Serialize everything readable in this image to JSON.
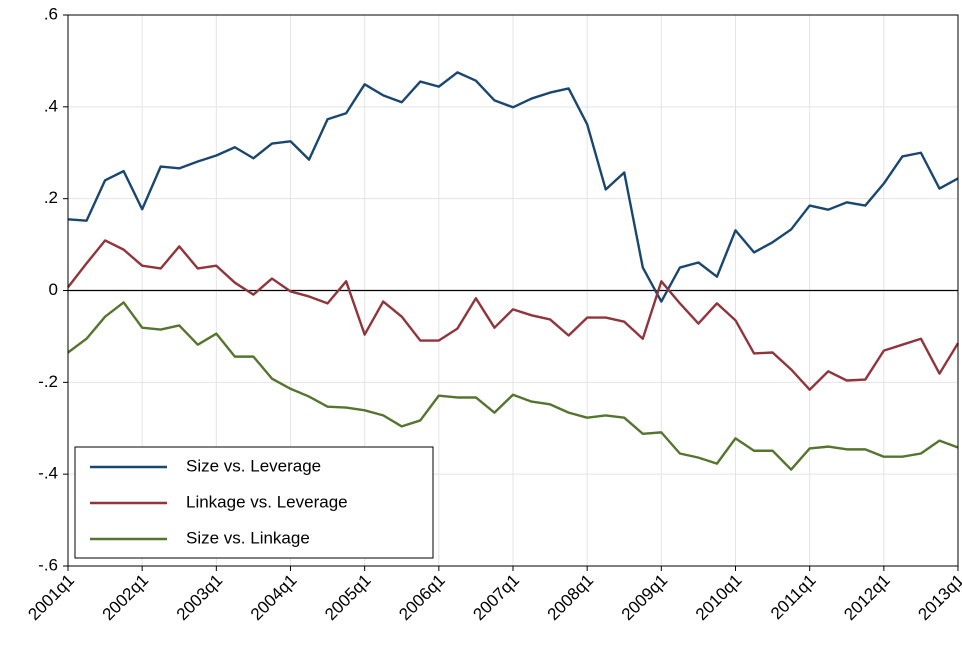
{
  "chart_data": {
    "type": "line",
    "categories": [
      "2001q1",
      null,
      null,
      null,
      "2002q1",
      null,
      null,
      null,
      "2003q1",
      null,
      null,
      null,
      "2004q1",
      null,
      null,
      null,
      "2005q1",
      null,
      null,
      null,
      "2006q1",
      null,
      null,
      null,
      "2007q1",
      null,
      null,
      null,
      "2008q1",
      null,
      null,
      null,
      "2009q1",
      null,
      null,
      null,
      "2010q1",
      null,
      null,
      null,
      "2011q1",
      null,
      null,
      null,
      "2012q1",
      null,
      null,
      null,
      "2013q1"
    ],
    "series": [
      {
        "name": "Size vs. Leverage",
        "color": "#1a476f",
        "values": [
          0.155,
          0.152,
          0.24,
          0.26,
          0.177,
          0.27,
          0.266,
          0.281,
          0.294,
          0.312,
          0.288,
          0.32,
          0.325,
          0.285,
          0.373,
          0.386,
          0.449,
          0.425,
          0.41,
          0.455,
          0.444,
          0.475,
          0.457,
          0.414,
          0.399,
          0.418,
          0.431,
          0.44,
          0.362,
          0.22,
          0.257,
          0.05,
          -0.024,
          0.05,
          0.061,
          0.03,
          0.131,
          0.083,
          0.105,
          0.133,
          0.185,
          0.176,
          0.192,
          0.185,
          0.233,
          0.292,
          0.3,
          0.222,
          0.244
        ]
      },
      {
        "name": "Linkage vs. Leverage",
        "color": "#90353b",
        "values": [
          0.007,
          0.059,
          0.109,
          0.089,
          0.054,
          0.048,
          0.096,
          0.048,
          0.054,
          0.017,
          -0.009,
          0.026,
          -0.002,
          -0.013,
          -0.028,
          0.02,
          -0.096,
          -0.024,
          -0.057,
          -0.109,
          -0.109,
          -0.083,
          -0.017,
          -0.081,
          -0.041,
          -0.054,
          -0.063,
          -0.098,
          -0.059,
          -0.059,
          -0.068,
          -0.105,
          0.02,
          -0.028,
          -0.072,
          -0.028,
          -0.065,
          -0.137,
          -0.135,
          -0.172,
          -0.216,
          -0.176,
          -0.196,
          -0.194,
          -0.131,
          -0.118,
          -0.105,
          -0.181,
          -0.115
        ]
      },
      {
        "name": "Size vs. Linkage",
        "color": "#55752f",
        "values": [
          -0.135,
          -0.105,
          -0.057,
          -0.026,
          -0.081,
          -0.085,
          -0.076,
          -0.118,
          -0.094,
          -0.144,
          -0.144,
          -0.192,
          -0.214,
          -0.231,
          -0.253,
          -0.255,
          -0.261,
          -0.272,
          -0.296,
          -0.283,
          -0.229,
          -0.233,
          -0.233,
          -0.266,
          -0.227,
          -0.242,
          -0.248,
          -0.266,
          -0.277,
          -0.272,
          -0.277,
          -0.312,
          -0.309,
          -0.355,
          -0.364,
          -0.377,
          -0.322,
          -0.349,
          -0.349,
          -0.39,
          -0.344,
          -0.34,
          -0.346,
          -0.346,
          -0.362,
          -0.362,
          -0.355,
          -0.327,
          -0.342
        ]
      }
    ],
    "ylim": [
      -0.6,
      0.6
    ],
    "yticks": [
      {
        "value": -0.6,
        "label": "-.6"
      },
      {
        "value": -0.4,
        "label": "-.4"
      },
      {
        "value": -0.2,
        "label": "-.2"
      },
      0,
      {
        "value": 0.2,
        "label": ".2"
      },
      {
        "value": 0.4,
        "label": ".4"
      },
      {
        "value": 0.6,
        "label": ".6"
      }
    ],
    "reference_line": 0,
    "grid": true,
    "legend": "lower left"
  }
}
